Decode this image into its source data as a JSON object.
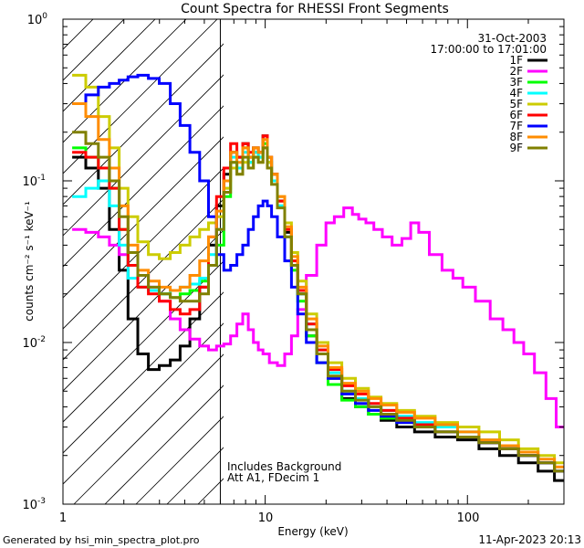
{
  "footer": {
    "generated_by": "Generated by hsi_min_spectra_plot.pro",
    "timestamp": "11-Apr-2023 20:13"
  },
  "chart_data": {
    "type": "line",
    "title": "Count Spectra for RHESSI Front Segments",
    "xlabel": "Energy (keV)",
    "ylabel": "counts cm⁻² s⁻¹ keV⁻¹",
    "xscale": "log",
    "yscale": "log",
    "xlim": [
      1.0,
      300.0
    ],
    "ylim": [
      0.001,
      1.0
    ],
    "x_tick_labels": [
      {
        "value": 1,
        "label": "1"
      },
      {
        "value": 10,
        "label": "10"
      },
      {
        "value": 100,
        "label": "100"
      }
    ],
    "y_tick_labels": [
      {
        "value": 0.001,
        "base": "10",
        "exp": "-3"
      },
      {
        "value": 0.01,
        "base": "10",
        "exp": "-2"
      },
      {
        "value": 0.1,
        "base": "10",
        "exp": "-1"
      },
      {
        "value": 1.0,
        "base": "10",
        "exp": "0"
      }
    ],
    "date": "31-Oct-2003",
    "time_range": "17:00:00 to 17:01:00",
    "annotations": [
      "Includes Background",
      "Att A1, FDecim 1"
    ],
    "hatched_energy_max": 6.0,
    "legend_position": "top-right",
    "series": [
      {
        "name": "1F",
        "color": "#000000",
        "x": [
          1.2,
          1.4,
          1.6,
          1.8,
          2.0,
          2.2,
          2.5,
          2.8,
          3.2,
          3.6,
          4.0,
          4.5,
          5.0,
          5.5,
          6.0,
          6.5,
          7.0,
          7.5,
          8.0,
          8.5,
          9.0,
          9.5,
          10,
          10.5,
          11,
          12,
          13,
          14,
          15,
          17,
          19,
          22,
          26,
          30,
          35,
          40,
          50,
          60,
          80,
          100,
          130,
          160,
          200,
          250,
          290
        ],
        "y": [
          0.14,
          0.12,
          0.09,
          0.05,
          0.028,
          0.014,
          0.0085,
          0.0068,
          0.0072,
          0.0078,
          0.0095,
          0.014,
          0.022,
          0.04,
          0.07,
          0.11,
          0.15,
          0.14,
          0.17,
          0.14,
          0.16,
          0.15,
          0.19,
          0.14,
          0.11,
          0.075,
          0.048,
          0.03,
          0.02,
          0.011,
          0.0085,
          0.006,
          0.0045,
          0.004,
          0.0036,
          0.0033,
          0.003,
          0.0028,
          0.0026,
          0.0025,
          0.0022,
          0.002,
          0.0018,
          0.0016,
          0.0014
        ]
      },
      {
        "name": "2F",
        "color": "#ff00ff",
        "x": [
          1.2,
          1.4,
          1.6,
          1.8,
          2.0,
          2.2,
          2.5,
          2.8,
          3.2,
          3.6,
          4.0,
          4.5,
          5.0,
          5.5,
          6.0,
          6.5,
          7.0,
          7.5,
          8.0,
          8.5,
          9.0,
          9.5,
          10,
          11,
          12,
          13,
          14,
          15,
          17,
          19,
          21,
          23,
          26,
          28,
          30,
          33,
          36,
          40,
          45,
          50,
          55,
          60,
          70,
          80,
          90,
          100,
          120,
          140,
          160,
          180,
          200,
          230,
          260,
          290
        ],
        "y": [
          0.05,
          0.048,
          0.045,
          0.04,
          0.035,
          0.03,
          0.026,
          0.022,
          0.018,
          0.014,
          0.012,
          0.0105,
          0.0095,
          0.009,
          0.0095,
          0.0098,
          0.011,
          0.013,
          0.015,
          0.012,
          0.01,
          0.009,
          0.0085,
          0.0075,
          0.0072,
          0.0085,
          0.011,
          0.016,
          0.026,
          0.04,
          0.055,
          0.06,
          0.068,
          0.062,
          0.058,
          0.055,
          0.05,
          0.045,
          0.04,
          0.044,
          0.055,
          0.048,
          0.035,
          0.028,
          0.025,
          0.022,
          0.018,
          0.014,
          0.012,
          0.01,
          0.0085,
          0.0065,
          0.0045,
          0.003
        ]
      },
      {
        "name": "3F",
        "color": "#00ff00",
        "x": [
          1.2,
          1.4,
          1.6,
          1.8,
          2.0,
          2.2,
          2.5,
          2.8,
          3.2,
          3.6,
          4.0,
          4.5,
          5.0,
          5.5,
          6.0,
          6.5,
          7.0,
          7.5,
          8.0,
          8.5,
          9.0,
          9.5,
          10,
          10.5,
          11,
          12,
          13,
          14,
          15,
          17,
          19,
          22,
          26,
          30,
          35,
          40,
          50,
          60,
          80,
          100,
          130,
          160,
          200,
          250,
          290
        ],
        "y": [
          0.16,
          0.14,
          0.12,
          0.09,
          0.05,
          0.03,
          0.022,
          0.021,
          0.02,
          0.019,
          0.02,
          0.021,
          0.024,
          0.03,
          0.04,
          0.08,
          0.13,
          0.12,
          0.16,
          0.13,
          0.15,
          0.14,
          0.17,
          0.13,
          0.1,
          0.07,
          0.045,
          0.028,
          0.018,
          0.011,
          0.0075,
          0.0055,
          0.0044,
          0.004,
          0.0036,
          0.0034,
          0.0032,
          0.003,
          0.0028,
          0.0026,
          0.0024,
          0.0022,
          0.002,
          0.0018,
          0.0016
        ]
      },
      {
        "name": "4F",
        "color": "#00ffff",
        "x": [
          1.2,
          1.4,
          1.6,
          1.8,
          2.0,
          2.2,
          2.5,
          2.8,
          3.2,
          3.6,
          4.0,
          4.5,
          5.0,
          5.5,
          6.0,
          6.5,
          7.0,
          7.5,
          8.0,
          8.5,
          9.0,
          9.5,
          10,
          10.5,
          11,
          12,
          13,
          14,
          15,
          17,
          19,
          22,
          26,
          30,
          35,
          40,
          50,
          60,
          80,
          100,
          130,
          160,
          200,
          250,
          290
        ],
        "y": [
          0.08,
          0.09,
          0.1,
          0.07,
          0.04,
          0.025,
          0.022,
          0.021,
          0.02,
          0.021,
          0.022,
          0.023,
          0.025,
          0.035,
          0.05,
          0.09,
          0.14,
          0.12,
          0.15,
          0.13,
          0.15,
          0.14,
          0.16,
          0.13,
          0.1,
          0.07,
          0.045,
          0.03,
          0.02,
          0.013,
          0.009,
          0.0065,
          0.005,
          0.0045,
          0.004,
          0.0038,
          0.0035,
          0.0032,
          0.003,
          0.0028,
          0.0025,
          0.0022,
          0.002,
          0.0018,
          0.0016
        ]
      },
      {
        "name": "5F",
        "color": "#cccc00",
        "x": [
          1.2,
          1.4,
          1.6,
          1.8,
          2.0,
          2.2,
          2.5,
          2.8,
          3.2,
          3.6,
          4.0,
          4.5,
          5.0,
          5.5,
          6.0,
          6.5,
          7.0,
          7.5,
          8.0,
          8.5,
          9.0,
          9.5,
          10,
          10.5,
          11,
          12,
          13,
          14,
          15,
          17,
          19,
          22,
          26,
          30,
          35,
          40,
          50,
          60,
          80,
          100,
          130,
          160,
          200,
          250,
          290
        ],
        "y": [
          0.45,
          0.38,
          0.25,
          0.16,
          0.09,
          0.06,
          0.042,
          0.035,
          0.033,
          0.036,
          0.04,
          0.045,
          0.05,
          0.055,
          0.06,
          0.09,
          0.12,
          0.11,
          0.13,
          0.12,
          0.14,
          0.13,
          0.16,
          0.13,
          0.11,
          0.08,
          0.055,
          0.036,
          0.024,
          0.015,
          0.01,
          0.0075,
          0.006,
          0.0052,
          0.0046,
          0.0042,
          0.0038,
          0.0035,
          0.0032,
          0.003,
          0.0028,
          0.0025,
          0.0022,
          0.002,
          0.0018
        ]
      },
      {
        "name": "6F",
        "color": "#ff0000",
        "x": [
          1.2,
          1.4,
          1.6,
          1.8,
          2.0,
          2.2,
          2.5,
          2.8,
          3.2,
          3.6,
          4.0,
          4.5,
          5.0,
          5.5,
          6.0,
          6.5,
          7.0,
          7.5,
          8.0,
          8.5,
          9.0,
          9.5,
          10,
          10.5,
          11,
          12,
          13,
          14,
          15,
          17,
          19,
          22,
          26,
          30,
          35,
          40,
          50,
          60,
          80,
          100,
          130,
          160,
          200,
          250,
          290
        ],
        "y": [
          0.15,
          0.14,
          0.12,
          0.09,
          0.05,
          0.03,
          0.022,
          0.02,
          0.018,
          0.016,
          0.015,
          0.016,
          0.022,
          0.045,
          0.08,
          0.12,
          0.17,
          0.14,
          0.17,
          0.15,
          0.16,
          0.15,
          0.19,
          0.14,
          0.11,
          0.075,
          0.05,
          0.032,
          0.021,
          0.013,
          0.009,
          0.0068,
          0.0054,
          0.0048,
          0.0042,
          0.0038,
          0.0034,
          0.0031,
          0.0028,
          0.0026,
          0.0024,
          0.0022,
          0.002,
          0.0018,
          0.0016
        ]
      },
      {
        "name": "7F",
        "color": "#0000ff",
        "x": [
          1.2,
          1.4,
          1.6,
          1.8,
          2.0,
          2.2,
          2.5,
          2.8,
          3.2,
          3.6,
          4.0,
          4.5,
          5.0,
          5.5,
          6.0,
          6.5,
          7.0,
          7.5,
          8.0,
          8.5,
          9.0,
          9.5,
          10,
          10.5,
          11,
          12,
          13,
          14,
          15,
          17,
          19,
          22,
          26,
          30,
          35,
          40,
          50,
          60,
          80,
          100,
          130,
          160,
          200,
          250,
          290
        ],
        "y": [
          0.3,
          0.34,
          0.38,
          0.4,
          0.42,
          0.44,
          0.45,
          0.43,
          0.4,
          0.3,
          0.22,
          0.15,
          0.1,
          0.06,
          0.035,
          0.028,
          0.03,
          0.035,
          0.04,
          0.05,
          0.06,
          0.07,
          0.075,
          0.07,
          0.06,
          0.045,
          0.032,
          0.022,
          0.015,
          0.01,
          0.0075,
          0.006,
          0.0048,
          0.0042,
          0.0038,
          0.0035,
          0.0032,
          0.003,
          0.0028,
          0.0026,
          0.0024,
          0.0022,
          0.002,
          0.0018,
          0.0016
        ]
      },
      {
        "name": "8F",
        "color": "#ff8c00",
        "x": [
          1.2,
          1.4,
          1.6,
          1.8,
          2.0,
          2.2,
          2.5,
          2.8,
          3.2,
          3.6,
          4.0,
          4.5,
          5.0,
          5.5,
          6.0,
          6.5,
          7.0,
          7.5,
          8.0,
          8.5,
          9.0,
          9.5,
          10,
          10.5,
          11,
          12,
          13,
          14,
          15,
          17,
          19,
          22,
          26,
          30,
          35,
          40,
          50,
          60,
          80,
          100,
          130,
          160,
          200,
          250,
          290
        ],
        "y": [
          0.3,
          0.25,
          0.18,
          0.12,
          0.07,
          0.04,
          0.028,
          0.024,
          0.022,
          0.021,
          0.022,
          0.026,
          0.032,
          0.045,
          0.065,
          0.1,
          0.15,
          0.13,
          0.16,
          0.14,
          0.16,
          0.15,
          0.18,
          0.14,
          0.11,
          0.08,
          0.052,
          0.034,
          0.022,
          0.014,
          0.0095,
          0.007,
          0.0056,
          0.005,
          0.0045,
          0.0041,
          0.0037,
          0.0034,
          0.0031,
          0.0028,
          0.0025,
          0.0023,
          0.0021,
          0.0019,
          0.0017
        ]
      },
      {
        "name": "9F",
        "color": "#808000",
        "x": [
          1.2,
          1.4,
          1.6,
          1.8,
          2.0,
          2.2,
          2.5,
          2.8,
          3.2,
          3.6,
          4.0,
          4.5,
          5.0,
          5.5,
          6.0,
          6.5,
          7.0,
          7.5,
          8.0,
          8.5,
          9.0,
          9.5,
          10,
          10.5,
          11,
          12,
          13,
          14,
          15,
          17,
          19,
          22,
          26,
          30,
          35,
          40,
          50,
          60,
          80,
          100,
          130,
          160,
          200,
          250,
          290
        ],
        "y": [
          0.2,
          0.17,
          0.14,
          0.1,
          0.06,
          0.036,
          0.026,
          0.022,
          0.02,
          0.019,
          0.018,
          0.018,
          0.02,
          0.03,
          0.05,
          0.085,
          0.13,
          0.11,
          0.14,
          0.12,
          0.14,
          0.13,
          0.16,
          0.12,
          0.095,
          0.068,
          0.045,
          0.03,
          0.02,
          0.012,
          0.0085,
          0.0062,
          0.005,
          0.0044,
          0.004,
          0.0036,
          0.0033,
          0.003,
          0.0028,
          0.0026,
          0.0024,
          0.0022,
          0.002,
          0.0018,
          0.0016
        ]
      }
    ]
  }
}
